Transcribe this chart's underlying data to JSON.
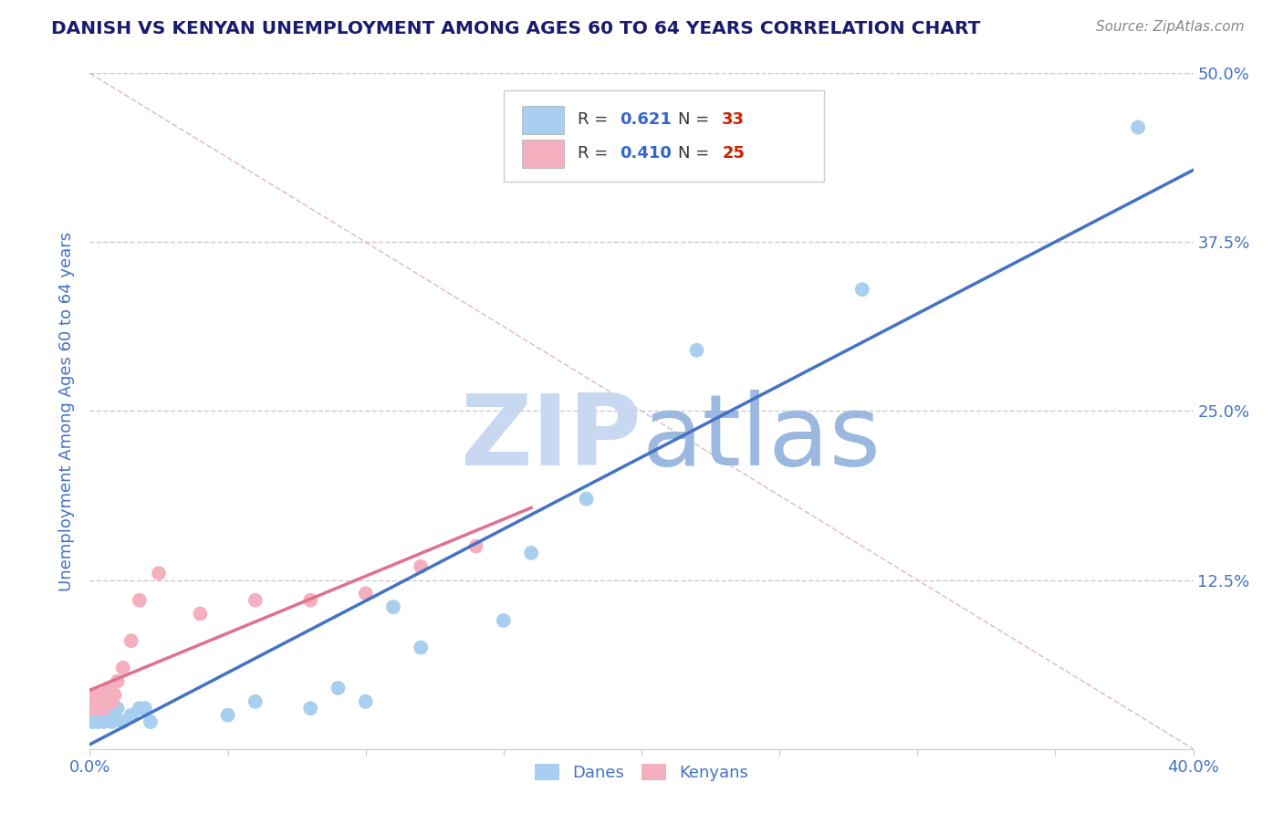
{
  "title": "DANISH VS KENYAN UNEMPLOYMENT AMONG AGES 60 TO 64 YEARS CORRELATION CHART",
  "source_text": "Source: ZipAtlas.com",
  "ylabel": "Unemployment Among Ages 60 to 64 years",
  "xlim": [
    0.0,
    0.4
  ],
  "ylim": [
    0.0,
    0.5
  ],
  "xticks": [
    0.0,
    0.05,
    0.1,
    0.15,
    0.2,
    0.25,
    0.3,
    0.35,
    0.4
  ],
  "xticklabels": [
    "0.0%",
    "",
    "",
    "",
    "",
    "",
    "",
    "",
    "40.0%"
  ],
  "yticks": [
    0.0,
    0.125,
    0.25,
    0.375,
    0.5
  ],
  "yticklabels": [
    "",
    "12.5%",
    "25.0%",
    "37.5%",
    "50.0%"
  ],
  "danes_x": [
    0.001,
    0.002,
    0.002,
    0.003,
    0.003,
    0.004,
    0.004,
    0.005,
    0.005,
    0.006,
    0.006,
    0.007,
    0.008,
    0.009,
    0.01,
    0.012,
    0.015,
    0.018,
    0.02,
    0.022,
    0.05,
    0.06,
    0.08,
    0.09,
    0.1,
    0.11,
    0.12,
    0.15,
    0.16,
    0.18,
    0.22,
    0.28,
    0.38
  ],
  "danes_y": [
    0.02,
    0.025,
    0.03,
    0.02,
    0.03,
    0.025,
    0.035,
    0.02,
    0.03,
    0.025,
    0.03,
    0.025,
    0.02,
    0.025,
    0.03,
    0.02,
    0.025,
    0.03,
    0.03,
    0.02,
    0.025,
    0.035,
    0.03,
    0.045,
    0.035,
    0.105,
    0.075,
    0.095,
    0.145,
    0.185,
    0.295,
    0.34,
    0.46
  ],
  "kenyans_x": [
    0.001,
    0.002,
    0.002,
    0.003,
    0.003,
    0.004,
    0.004,
    0.005,
    0.005,
    0.006,
    0.006,
    0.007,
    0.008,
    0.009,
    0.01,
    0.012,
    0.015,
    0.018,
    0.025,
    0.04,
    0.06,
    0.08,
    0.1,
    0.12,
    0.14
  ],
  "kenyans_y": [
    0.03,
    0.035,
    0.04,
    0.03,
    0.04,
    0.035,
    0.04,
    0.03,
    0.04,
    0.035,
    0.04,
    0.045,
    0.035,
    0.04,
    0.05,
    0.06,
    0.08,
    0.11,
    0.13,
    0.1,
    0.11,
    0.11,
    0.115,
    0.135,
    0.15
  ],
  "danes_R": 0.621,
  "danes_N": 33,
  "kenyans_R": 0.41,
  "kenyans_N": 25,
  "danes_color": "#a8cff0",
  "kenyans_color": "#f5b0c0",
  "danes_line_color": "#4472c4",
  "kenyans_line_color": "#e07090",
  "diag_line_color": "#e0b0c0",
  "legend_R_color": "#3366cc",
  "legend_N_color": "#cc2200",
  "watermark_ZIP_color": "#c8d8f0",
  "watermark_atlas_color": "#9ab8e0",
  "grid_color": "#cccccc",
  "title_color": "#1a1a6e",
  "axis_label_color": "#4472c4",
  "tick_label_color": "#4472c4",
  "source_color": "#888888",
  "background_color": "#ffffff"
}
